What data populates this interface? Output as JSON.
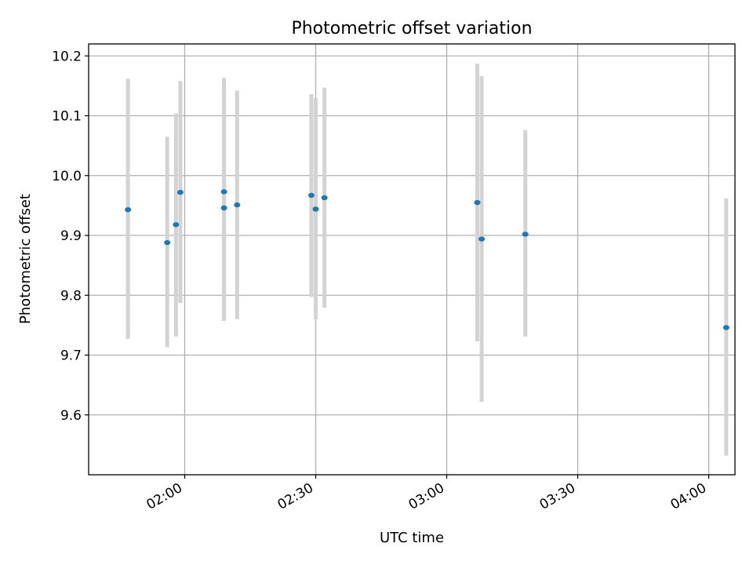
{
  "chart_data": {
    "type": "scatter",
    "title": "Photometric offset variation",
    "xlabel": "UTC time",
    "ylabel": "Photometric offset",
    "x_ticks": [
      "02:00",
      "02:30",
      "03:00",
      "03:30",
      "04:00"
    ],
    "y_ticks": [
      "9.6",
      "9.7",
      "9.8",
      "9.9",
      "10.0",
      "10.1",
      "10.2"
    ],
    "xlim": [
      "01:38",
      "04:06"
    ],
    "ylim": [
      9.5,
      10.22
    ],
    "grid": true,
    "colors": {
      "point": "#1f77b4",
      "errorbar": "#d3d3d3",
      "grid": "#b0b0b0"
    },
    "points": [
      {
        "x": "01:47",
        "y": 9.943,
        "ylow": 9.727,
        "yhigh": 10.162
      },
      {
        "x": "01:56",
        "y": 9.888,
        "ylow": 9.713,
        "yhigh": 10.065
      },
      {
        "x": "01:58",
        "y": 9.918,
        "ylow": 9.731,
        "yhigh": 10.104
      },
      {
        "x": "01:59",
        "y": 9.972,
        "ylow": 9.787,
        "yhigh": 10.158
      },
      {
        "x": "02:09",
        "y": 9.946,
        "ylow": 9.757,
        "yhigh": 10.135
      },
      {
        "x": "02:09",
        "y": 9.973,
        "ylow": 9.785,
        "yhigh": 10.163
      },
      {
        "x": "02:12",
        "y": 9.951,
        "ylow": 9.76,
        "yhigh": 10.142
      },
      {
        "x": "02:29",
        "y": 9.967,
        "ylow": 9.797,
        "yhigh": 10.136
      },
      {
        "x": "02:30",
        "y": 9.944,
        "ylow": 9.76,
        "yhigh": 10.13
      },
      {
        "x": "02:32",
        "y": 9.963,
        "ylow": 9.779,
        "yhigh": 10.147
      },
      {
        "x": "03:07",
        "y": 9.955,
        "ylow": 9.723,
        "yhigh": 10.187
      },
      {
        "x": "03:08",
        "y": 9.894,
        "ylow": 9.622,
        "yhigh": 10.166
      },
      {
        "x": "03:18",
        "y": 9.902,
        "ylow": 9.731,
        "yhigh": 10.076
      },
      {
        "x": "04:04",
        "y": 9.746,
        "ylow": 9.532,
        "yhigh": 9.962
      }
    ]
  }
}
